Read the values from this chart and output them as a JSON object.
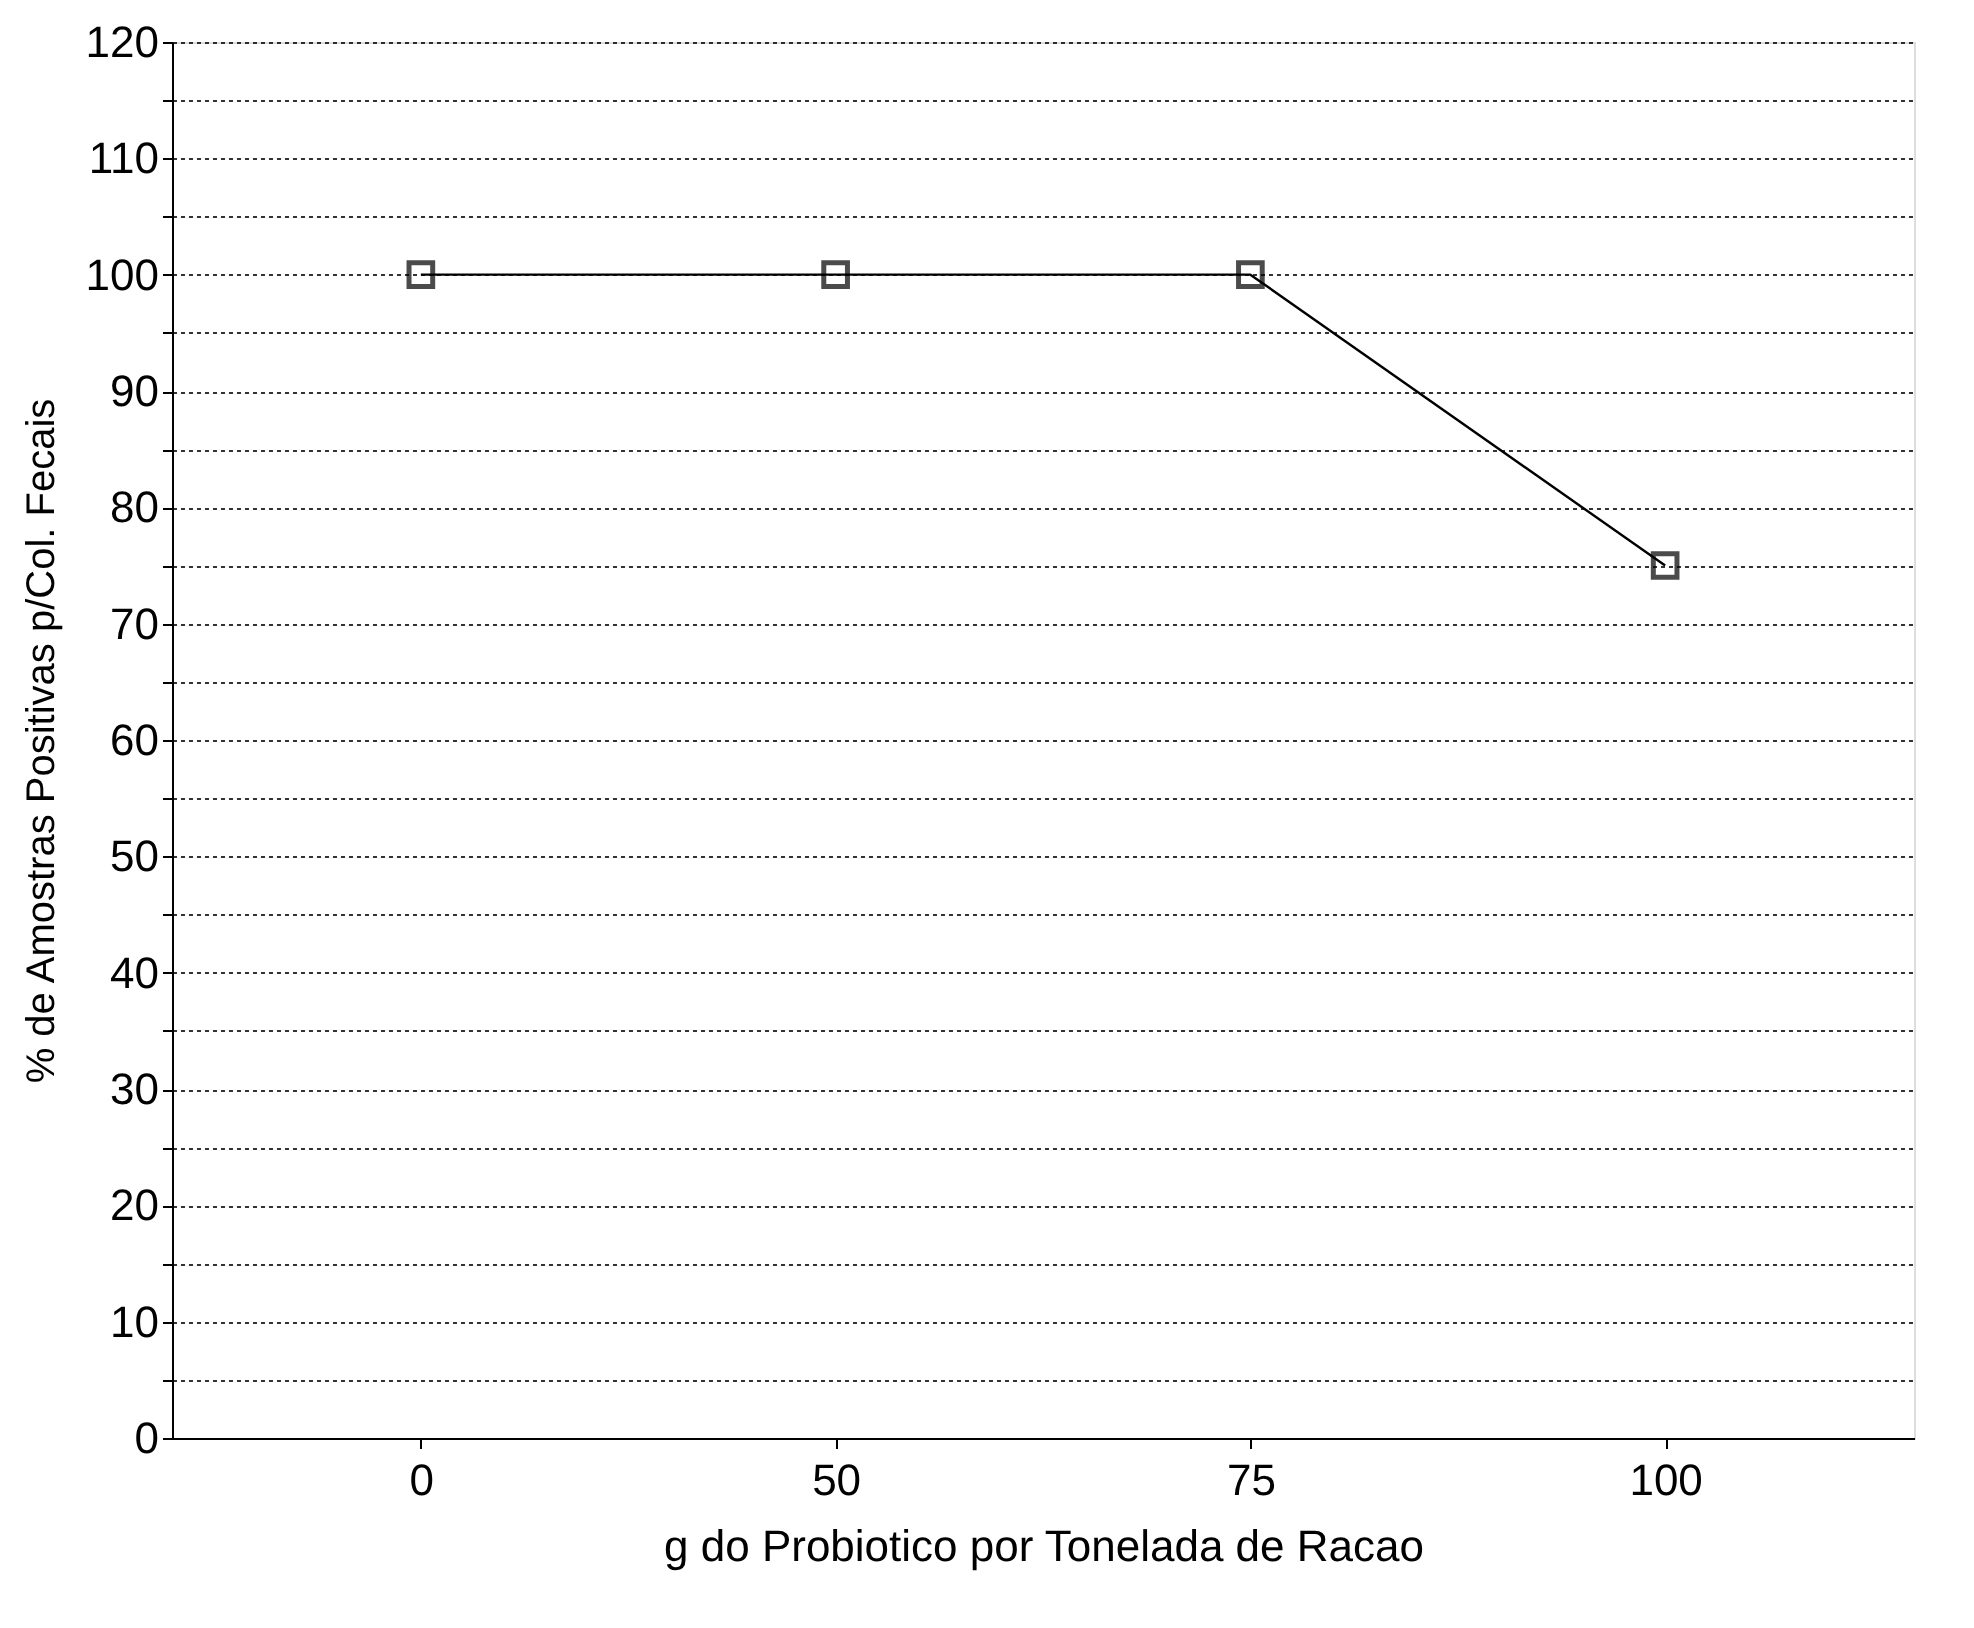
{
  "chart_data": {
    "type": "line",
    "xlabel": "g do Probiotico por Tonelada de Racao",
    "ylabel": "% de Amostras Positivas p/Col. Fecais",
    "categories": [
      "0",
      "50",
      "75",
      "100"
    ],
    "series": [
      {
        "color": "#000000",
        "values": [
          100,
          100,
          100,
          75
        ]
      }
    ],
    "ylim": [
      0,
      120
    ],
    "yticks": [
      0,
      {
        "value": 5,
        "label": null
      },
      10,
      {
        "value": 15,
        "label": null
      },
      20,
      {
        "value": 25,
        "label": null
      },
      30,
      {
        "value": 35,
        "label": null
      },
      40,
      {
        "value": 45,
        "label": null
      },
      50,
      {
        "value": 55,
        "label": null
      },
      60,
      {
        "value": 65,
        "label": null
      },
      70,
      {
        "value": 75,
        "label": null
      },
      80,
      {
        "value": 85,
        "label": null
      },
      90,
      {
        "value": 95,
        "label": null
      },
      100,
      {
        "value": 105,
        "label": null
      },
      110,
      {
        "value": 115,
        "label": null
      },
      120
    ],
    "grid": "y",
    "marker": "square",
    "line_style": "solid"
  }
}
